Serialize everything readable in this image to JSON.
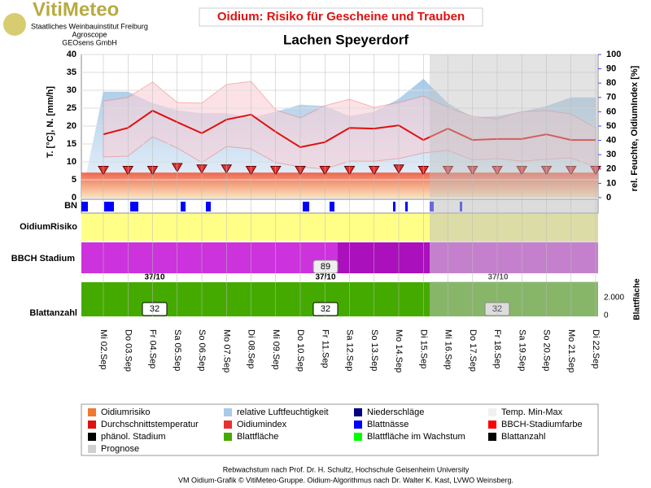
{
  "header": {
    "logo": "VitiMeteo",
    "org1": "Staatliches Weinbauinstitut Freiburg",
    "org2": "Agroscope",
    "org3": "GEOsens GmbH"
  },
  "chart_data": {
    "type": "line",
    "title": "Oidium: Risiko für Gescheine und Trauben",
    "subtitle": "Lachen Speyerdorf",
    "ylabel": "T. [°C], N. [mm/h]",
    "y2label": "rel. Feuchte, OidiumIndex [%]",
    "categories": [
      "Mi 02.Sep",
      "Do 03.Sep",
      "Fr 04.Sep",
      "Sa 05.Sep",
      "So 06.Sep",
      "Mo 07.Sep",
      "Di 08.Sep",
      "Mi 09.Sep",
      "Do 10.Sep",
      "Fr 11.Sep",
      "Sa 12.Sep",
      "So 13.Sep",
      "Mo 14.Sep",
      "Di 15.Sep",
      "Mi 16.Sep",
      "Do 17.Sep",
      "Fr 18.Sep",
      "Sa 19.Sep",
      "So 20.Sep",
      "Mo 21.Sep",
      "Di 22.Sep"
    ],
    "ylim": [
      0,
      40
    ],
    "yticks": [
      0,
      5,
      10,
      15,
      20,
      25,
      30,
      35,
      40
    ],
    "y2lim": [
      0,
      100
    ],
    "y2ticks": [
      0,
      10,
      20,
      30,
      40,
      50,
      60,
      70,
      80,
      90,
      100
    ],
    "series": [
      {
        "name": "relative Luftfeuchtigkeit",
        "color": "#a8cbe8",
        "axis": "y2",
        "values": [
          74,
          74,
          66,
          61,
          59,
          59,
          56,
          60,
          65,
          64,
          57,
          60,
          69,
          83,
          66,
          56,
          57,
          60,
          64,
          70,
          70
        ]
      },
      {
        "name": "Temp. Min-Max",
        "color": "#f08080",
        "values": [
          27,
          28,
          32.3,
          26.6,
          26.4,
          31.6,
          32.5,
          24.5,
          22.3,
          25.7,
          27.5,
          25.2,
          26.6,
          28.4,
          25.2,
          22.7,
          22,
          24.1,
          24.3,
          23.4,
          19.5
        ],
        "min_values": [
          11.4,
          11.6,
          17,
          13.9,
          9.8,
          14.3,
          13.6,
          9.8,
          8.6,
          8,
          10.2,
          10.2,
          10.9,
          12.5,
          13.2,
          10.5,
          10.9,
          10.2,
          10.7,
          11.1,
          8.6
        ]
      },
      {
        "name": "Durchschnittstemperatur",
        "color": "#e01010",
        "values": [
          17.7,
          19.5,
          24.3,
          21.1,
          18,
          21.8,
          23.2,
          18.4,
          14.1,
          15.5,
          19.5,
          19.3,
          20.2,
          16.1,
          19.3,
          16.1,
          16.4,
          16.4,
          17.7,
          16.1,
          16.1
        ]
      },
      {
        "name": "Oidiumindex",
        "color": "#e83030",
        "axis": "y2",
        "values": [
          19,
          19,
          19,
          21,
          20,
          20,
          19,
          19,
          19,
          19,
          19,
          19,
          20,
          19,
          19,
          19,
          19,
          19,
          19,
          19,
          19
        ]
      }
    ],
    "rows": {
      "bn": "BN",
      "risk": "OidiumRisiko",
      "bbch": "BBCH Stadium",
      "leaves": "Blattanzahl",
      "area": "Blattfläche",
      "area_ticks": [
        "2.000",
        "0"
      ],
      "bbch_value": "89",
      "stages": [
        "37/10",
        "37/10",
        "37/10"
      ],
      "leaf_counts": [
        "32",
        "32",
        "32"
      ]
    },
    "legend": [
      "Oidiumrisiko",
      "relative Luftfeuchtigkeit",
      "Niederschläge",
      "Temp. Min-Max",
      "Durchschnittstemperatur",
      "Oidiumindex",
      "Blattnässe",
      "BBCH-Stadiumfarbe",
      "phänol. Stadium",
      "Blattfläche",
      "Blattfläche im Wachstum",
      "Blattanzahl",
      "Prognose"
    ],
    "legend_colors": [
      "#f07830",
      "#a8cbe8",
      "#000080",
      "#f0f0f0",
      "#e01010",
      "#e83030",
      "#0000ff",
      "#ff0000",
      "#000000",
      "#44aa00",
      "#00ff00",
      "#000000",
      "#d0d0d0"
    ]
  },
  "footer": [
    "Rebwachstum nach Prof. Dr. H. Schultz, Hochschule Geisenheim University",
    "VM Oidium-Grafik © VitiMeteo-Gruppe. Oidium-Algorithmus nach Dr. Walter K. Kast, LVWO Weinsberg."
  ]
}
